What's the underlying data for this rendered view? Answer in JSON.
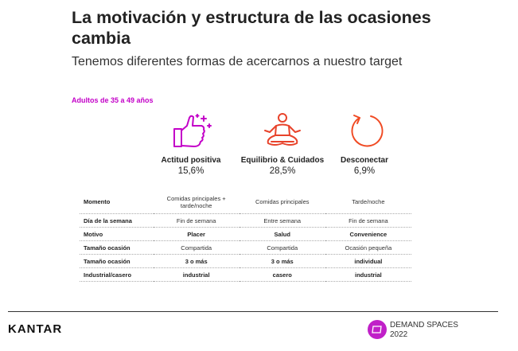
{
  "header": {
    "title": "La motivación y estructura de las ocasiones cambia",
    "subtitle": "Tenemos diferentes formas de acercarnos a nuestro target"
  },
  "segment": "Adultos de 35 a 49 años",
  "columns": [
    {
      "icon": "thumbs-up-icon",
      "name": "Actitud positiva",
      "pct": "15,6%",
      "color": "#c300c8"
    },
    {
      "icon": "meditation-icon",
      "name": "Equilibrio & Cuidados",
      "pct": "28,5%",
      "color": "#e8432b"
    },
    {
      "icon": "refresh-arrow-icon",
      "name": "Desconectar",
      "pct": "6,9%",
      "color": "#f04a23"
    }
  ],
  "table": {
    "rows": [
      {
        "label": "Momento",
        "values": [
          "Comidas principales + tarde/noche",
          "Comidas principales",
          "Tarde/noche"
        ],
        "bold": false
      },
      {
        "label": "Día de la semana",
        "values": [
          "Fin de semana",
          "Entre semana",
          "Fin de semana"
        ],
        "bold": false
      },
      {
        "label": "Motivo",
        "values": [
          "Placer",
          "Salud",
          "Convenience"
        ],
        "bold": true
      },
      {
        "label": "Tamaño ocasión",
        "values": [
          "Compartida",
          "Compartida",
          "Ocasión pequeña"
        ],
        "bold": false
      },
      {
        "label": "Tamaño ocasión",
        "values": [
          "3 o más",
          "3 o más",
          "individual"
        ],
        "bold": true
      },
      {
        "label": "Industrial/casero",
        "values": [
          "industrial",
          "casero",
          "industrial"
        ],
        "bold": true
      }
    ]
  },
  "footer": {
    "logo": "KANTAR",
    "product_line1": "DEMAND SPACES",
    "product_line2": "2022"
  }
}
